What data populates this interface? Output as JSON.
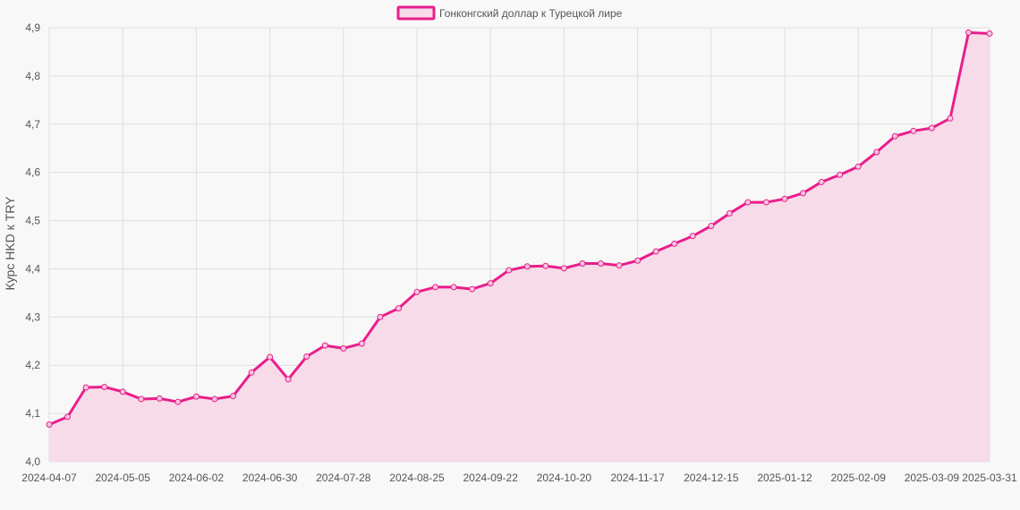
{
  "chart_data": {
    "type": "area",
    "title": "",
    "xlabel": "",
    "ylabel": "Курс HKD к TRY",
    "ylim": [
      4.0,
      4.9
    ],
    "y_ticks": [
      "4,0",
      "4,1",
      "4,2",
      "4,3",
      "4,4",
      "4,5",
      "4,6",
      "4,7",
      "4,8",
      "4,9"
    ],
    "x_tick_labels": [
      "2024-04-07",
      "2024-05-05",
      "2024-06-02",
      "2024-06-30",
      "2024-07-28",
      "2024-08-25",
      "2024-09-22",
      "2024-10-20",
      "2024-11-17",
      "2024-12-15",
      "2025-01-12",
      "2025-02-09",
      "2025-03-09",
      "2025-03-31"
    ],
    "grid": true,
    "legend_position": "top-center",
    "series": [
      {
        "name": "Гонконгский доллар к Турецкой лире",
        "color": "#e91e8c",
        "fill": "#f7dbe9",
        "x": [
          "2024-04-07",
          "2024-04-14",
          "2024-04-21",
          "2024-04-28",
          "2024-05-05",
          "2024-05-12",
          "2024-05-19",
          "2024-05-26",
          "2024-06-02",
          "2024-06-09",
          "2024-06-16",
          "2024-06-23",
          "2024-06-30",
          "2024-07-07",
          "2024-07-14",
          "2024-07-21",
          "2024-07-28",
          "2024-08-04",
          "2024-08-11",
          "2024-08-18",
          "2024-08-25",
          "2024-09-01",
          "2024-09-08",
          "2024-09-15",
          "2024-09-22",
          "2024-09-29",
          "2024-10-06",
          "2024-10-13",
          "2024-10-20",
          "2024-10-27",
          "2024-11-03",
          "2024-11-10",
          "2024-11-17",
          "2024-11-24",
          "2024-12-01",
          "2024-12-08",
          "2024-12-15",
          "2024-12-22",
          "2024-12-29",
          "2025-01-05",
          "2025-01-12",
          "2025-01-19",
          "2025-01-26",
          "2025-02-02",
          "2025-02-09",
          "2025-02-16",
          "2025-02-23",
          "2025-03-02",
          "2025-03-09",
          "2025-03-16",
          "2025-03-23",
          "2025-03-31"
        ],
        "values": [
          4.077,
          4.093,
          4.154,
          4.155,
          4.145,
          4.13,
          4.131,
          4.124,
          4.135,
          4.13,
          4.136,
          4.185,
          4.217,
          4.171,
          4.218,
          4.241,
          4.235,
          4.245,
          4.3,
          4.318,
          4.352,
          4.362,
          4.362,
          4.358,
          4.37,
          4.397,
          4.405,
          4.406,
          4.401,
          4.411,
          4.411,
          4.407,
          4.417,
          4.436,
          4.452,
          4.468,
          4.489,
          4.515,
          4.538,
          4.538,
          4.545,
          4.557,
          4.58,
          4.595,
          4.612,
          4.642,
          4.675,
          4.686,
          4.692,
          4.712,
          4.89,
          4.888
        ]
      }
    ]
  }
}
